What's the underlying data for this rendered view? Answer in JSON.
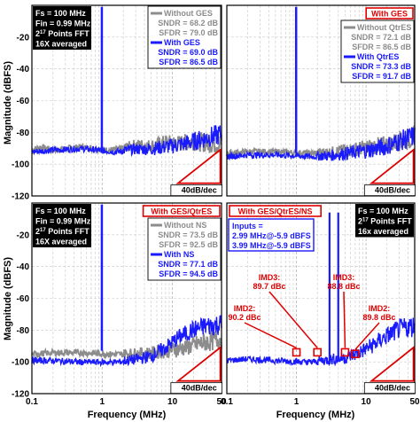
{
  "chart_data": [
    {
      "type": "line",
      "info_lines": [
        "Fs = 100  MHz",
        "Fin = 0.99 MHz",
        "2^17 Points FFT",
        "16X averaged"
      ],
      "legend": [
        {
          "text": "Without GES",
          "color": "#8c8c8c",
          "kind": "name"
        },
        {
          "text": "SNDR = 68.2 dB",
          "color": "#8c8c8c",
          "kind": "metric"
        },
        {
          "text": "SFDR = 79.0 dB",
          "color": "#8c8c8c",
          "kind": "metric"
        },
        {
          "text": "With GES",
          "color": "#1a1aff",
          "kind": "name"
        },
        {
          "text": "SNDR = 69.0 dB",
          "color": "#1a1aff",
          "kind": "metric"
        },
        {
          "text": "SFDR = 86.5 dB",
          "color": "#1a1aff",
          "kind": "metric"
        }
      ],
      "slope_label": "40dB/dec",
      "series": [
        {
          "name": "Without GES",
          "color": "#8c8c8c",
          "x": [
            0.1,
            0.13,
            0.2,
            0.3,
            0.5,
            0.8,
            1.2,
            2,
            3,
            5,
            8,
            12,
            20,
            30,
            50
          ],
          "y": [
            -92,
            -90,
            -92,
            -91,
            -90,
            -91,
            -92,
            -91,
            -89,
            -90,
            -88,
            -89,
            -88,
            -89,
            -90
          ]
        },
        {
          "name": "With GES",
          "color": "#1a1aff",
          "x": [
            0.1,
            0.2,
            0.5,
            1.5,
            3,
            5,
            8,
            12,
            20,
            30,
            50
          ],
          "y": [
            -93,
            -92,
            -91,
            -93,
            -92,
            -92,
            -91,
            -90,
            -88,
            -86,
            -84
          ]
        }
      ],
      "xlabel": "",
      "ylabel": "Magnitude (dBFS)",
      "xlim": [
        0.1,
        50
      ],
      "ylim": [
        -120,
        0
      ]
    },
    {
      "type": "line",
      "info_lines": [],
      "tag": "With GES",
      "legend": [
        {
          "text": "Without QtrES",
          "color": "#8c8c8c",
          "kind": "name"
        },
        {
          "text": "SNDR = 72.1 dB",
          "color": "#8c8c8c",
          "kind": "metric"
        },
        {
          "text": "SFDR = 86.5 dB",
          "color": "#8c8c8c",
          "kind": "metric"
        },
        {
          "text": "With QtrES",
          "color": "#1a1aff",
          "kind": "name"
        },
        {
          "text": "SNDR = 73.3 dB",
          "color": "#1a1aff",
          "kind": "metric"
        },
        {
          "text": "SFDR = 91.7 dB",
          "color": "#1a1aff",
          "kind": "metric"
        }
      ],
      "slope_label": "40dB/dec",
      "series": [
        {
          "name": "Without QtrES",
          "color": "#8c8c8c",
          "x": [
            0.1,
            0.2,
            0.5,
            1.5,
            3,
            5,
            8,
            12,
            20,
            30,
            50
          ],
          "y": [
            -94,
            -93,
            -93,
            -94,
            -94,
            -93,
            -92,
            -91,
            -90,
            -88,
            -86
          ]
        },
        {
          "name": "With QtrES",
          "color": "#1a1aff",
          "x": [
            0.1,
            0.2,
            0.5,
            1.5,
            3,
            5,
            8,
            12,
            20,
            30,
            50
          ],
          "y": [
            -96,
            -95,
            -95,
            -96,
            -96,
            -95,
            -94,
            -93,
            -91,
            -88,
            -85
          ]
        }
      ],
      "xlabel": "",
      "ylabel": "",
      "xlim": [
        0.1,
        50
      ],
      "ylim": [
        -120,
        0
      ]
    },
    {
      "type": "line",
      "info_lines": [
        "Fs = 100  MHz",
        "Fin = 0.99 MHz",
        "2^17 Points FFT",
        "16X averaged"
      ],
      "tag": "With GES/QtrES",
      "legend": [
        {
          "text": "Without NS",
          "color": "#8c8c8c",
          "kind": "name"
        },
        {
          "text": "SNDR = 73.5 dB",
          "color": "#8c8c8c",
          "kind": "metric"
        },
        {
          "text": "SFDR = 92.5 dB",
          "color": "#8c8c8c",
          "kind": "metric"
        },
        {
          "text": "With NS",
          "color": "#1a1aff",
          "kind": "name"
        },
        {
          "text": "SNDR = 77.1 dB",
          "color": "#1a1aff",
          "kind": "metric"
        },
        {
          "text": "SFDR = 94.5 dB",
          "color": "#1a1aff",
          "kind": "metric"
        }
      ],
      "slope_label": "40dB/dec",
      "series": [
        {
          "name": "Without NS",
          "color": "#8c8c8c",
          "x": [
            0.1,
            0.2,
            0.5,
            1.5,
            3,
            5,
            8,
            12,
            20,
            30,
            50
          ],
          "y": [
            -96,
            -95,
            -95,
            -96,
            -96,
            -96,
            -95,
            -94,
            -92,
            -90,
            -88
          ]
        },
        {
          "name": "With NS",
          "color": "#1a1aff",
          "x": [
            0.1,
            0.2,
            0.5,
            1.5,
            3,
            5,
            8,
            12,
            20,
            30,
            50
          ],
          "y": [
            -100,
            -100,
            -101,
            -101,
            -100,
            -98,
            -93,
            -87,
            -82,
            -80,
            -79
          ]
        }
      ],
      "xlabel": "Frequency (MHz)",
      "ylabel": "Magnitude (dBFS)",
      "xlim": [
        0.1,
        50
      ],
      "ylim": [
        -120,
        0
      ]
    },
    {
      "type": "line",
      "info_lines": [
        "Fs = 100  MHz",
        "2^17 Points FFT",
        "16x averaged"
      ],
      "tag": "With GES/QtrES/NS",
      "inputs_box": [
        "Inputs =",
        "2.99 MHz@-5.9 dBFS",
        "3.99 MHz@-5.9 dBFS"
      ],
      "imd_labels": [
        {
          "text": "IMD2: 90.2 dBc",
          "x": 1.0,
          "y": -94
        },
        {
          "text": "IMD3: 89.7 dBc",
          "x": 2.0,
          "y": -94
        },
        {
          "text": "IMD3: 88.8 dBc",
          "x": 5.0,
          "y": -94
        },
        {
          "text": "IMD2: 89.8 dBc",
          "x": 7.0,
          "y": -95
        }
      ],
      "slope_label": "40dB/dec",
      "series": [
        {
          "name": "With GES/QtrES/NS",
          "color": "#1a1aff",
          "x": [
            0.1,
            0.2,
            0.5,
            1.5,
            3,
            5,
            8,
            12,
            20,
            30,
            50
          ],
          "y": [
            -100,
            -99,
            -100,
            -101,
            -100,
            -99,
            -96,
            -92,
            -86,
            -82,
            -80
          ]
        }
      ],
      "xlabel": "Frequency (MHz)",
      "ylabel": "",
      "xlim": [
        0.1,
        50
      ],
      "ylim": [
        -120,
        0
      ]
    }
  ]
}
